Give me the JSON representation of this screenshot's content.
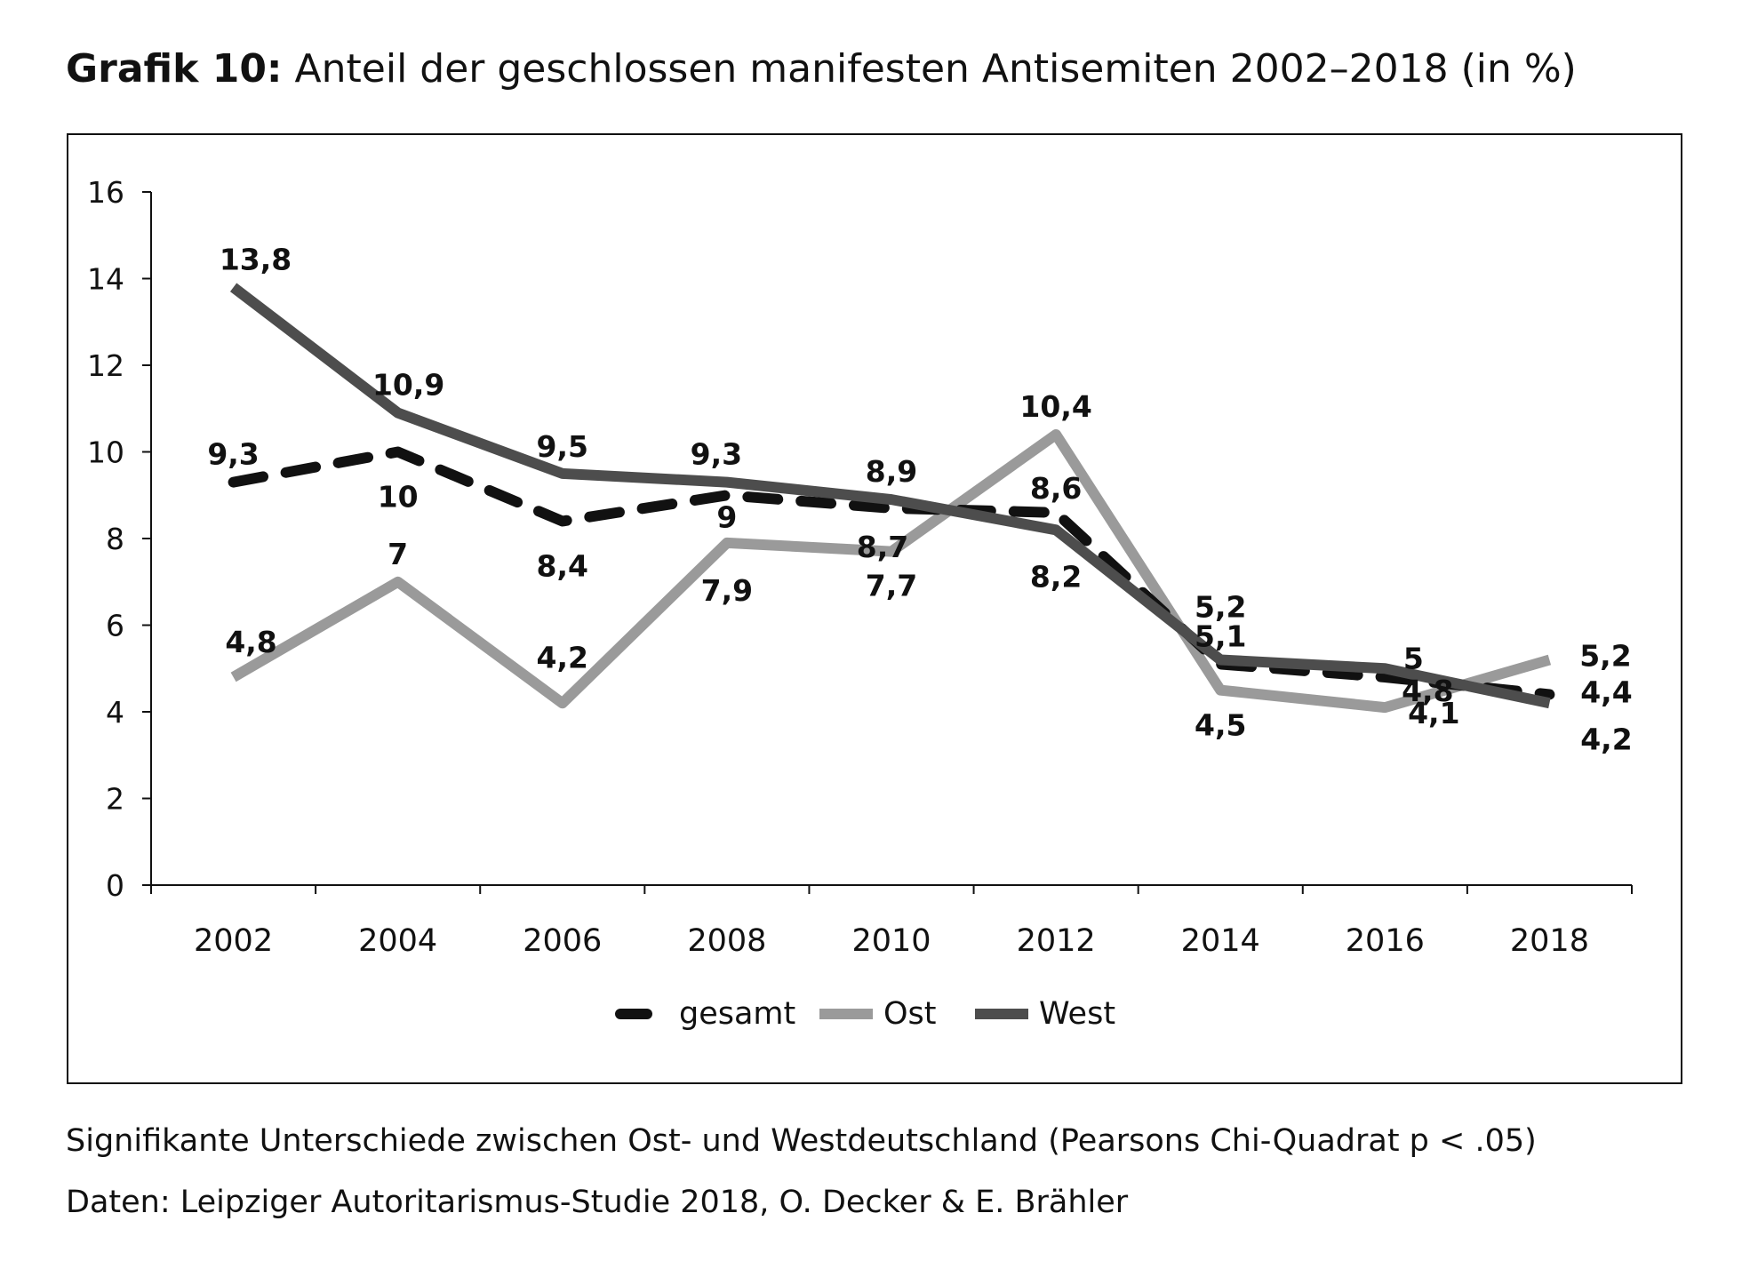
{
  "title_bold": "Grafik 10:",
  "title_rest": "Anteil der geschlossen manifesten Antisemiten 2002–2018 (in %)",
  "footnote": "Signifikante Unterschiede zwischen Ost- und Westdeutschland (Pearsons Chi-Quadrat p < .05)",
  "source": "Daten: Leipziger Autoritarismus-Studie 2018, O. Decker & E. Brähler",
  "chart_data": {
    "type": "line",
    "title": "",
    "xlabel": "",
    "ylabel": "",
    "categories": [
      "2002",
      "2004",
      "2006",
      "2008",
      "2010",
      "2012",
      "2014",
      "2016",
      "2018"
    ],
    "ylim": [
      0,
      16
    ],
    "yticks": [
      0,
      2,
      4,
      6,
      8,
      10,
      12,
      14,
      16
    ],
    "grid": false,
    "legend_position": "bottom",
    "series": [
      {
        "name": "gesamt",
        "style": "dashed",
        "color": "#111111",
        "values": [
          9.3,
          10,
          8.4,
          9,
          8.7,
          8.6,
          5.1,
          4.8,
          4.4
        ],
        "labels": [
          "9,3",
          "10",
          "8,4",
          "9",
          "8,7",
          "8,6",
          "5,1",
          "4,8",
          "4,4"
        ]
      },
      {
        "name": "Ost",
        "style": "solid",
        "color": "#9a9a9a",
        "values": [
          4.8,
          7,
          4.2,
          7.9,
          7.7,
          10.4,
          4.5,
          4.1,
          5.2
        ],
        "labels": [
          "4,8",
          "7",
          "4,2",
          "7,9",
          "7,7",
          "10,4",
          "4,5",
          "4,1",
          "5,2"
        ]
      },
      {
        "name": "West",
        "style": "solid",
        "color": "#4d4d4d",
        "values": [
          13.8,
          10.9,
          9.5,
          9.3,
          8.9,
          8.2,
          5.2,
          5,
          4.2
        ],
        "labels": [
          "13,8",
          "10,9",
          "9,5",
          "9,3",
          "8,9",
          "8,2",
          "5,2",
          "5",
          "4,2"
        ]
      }
    ]
  }
}
